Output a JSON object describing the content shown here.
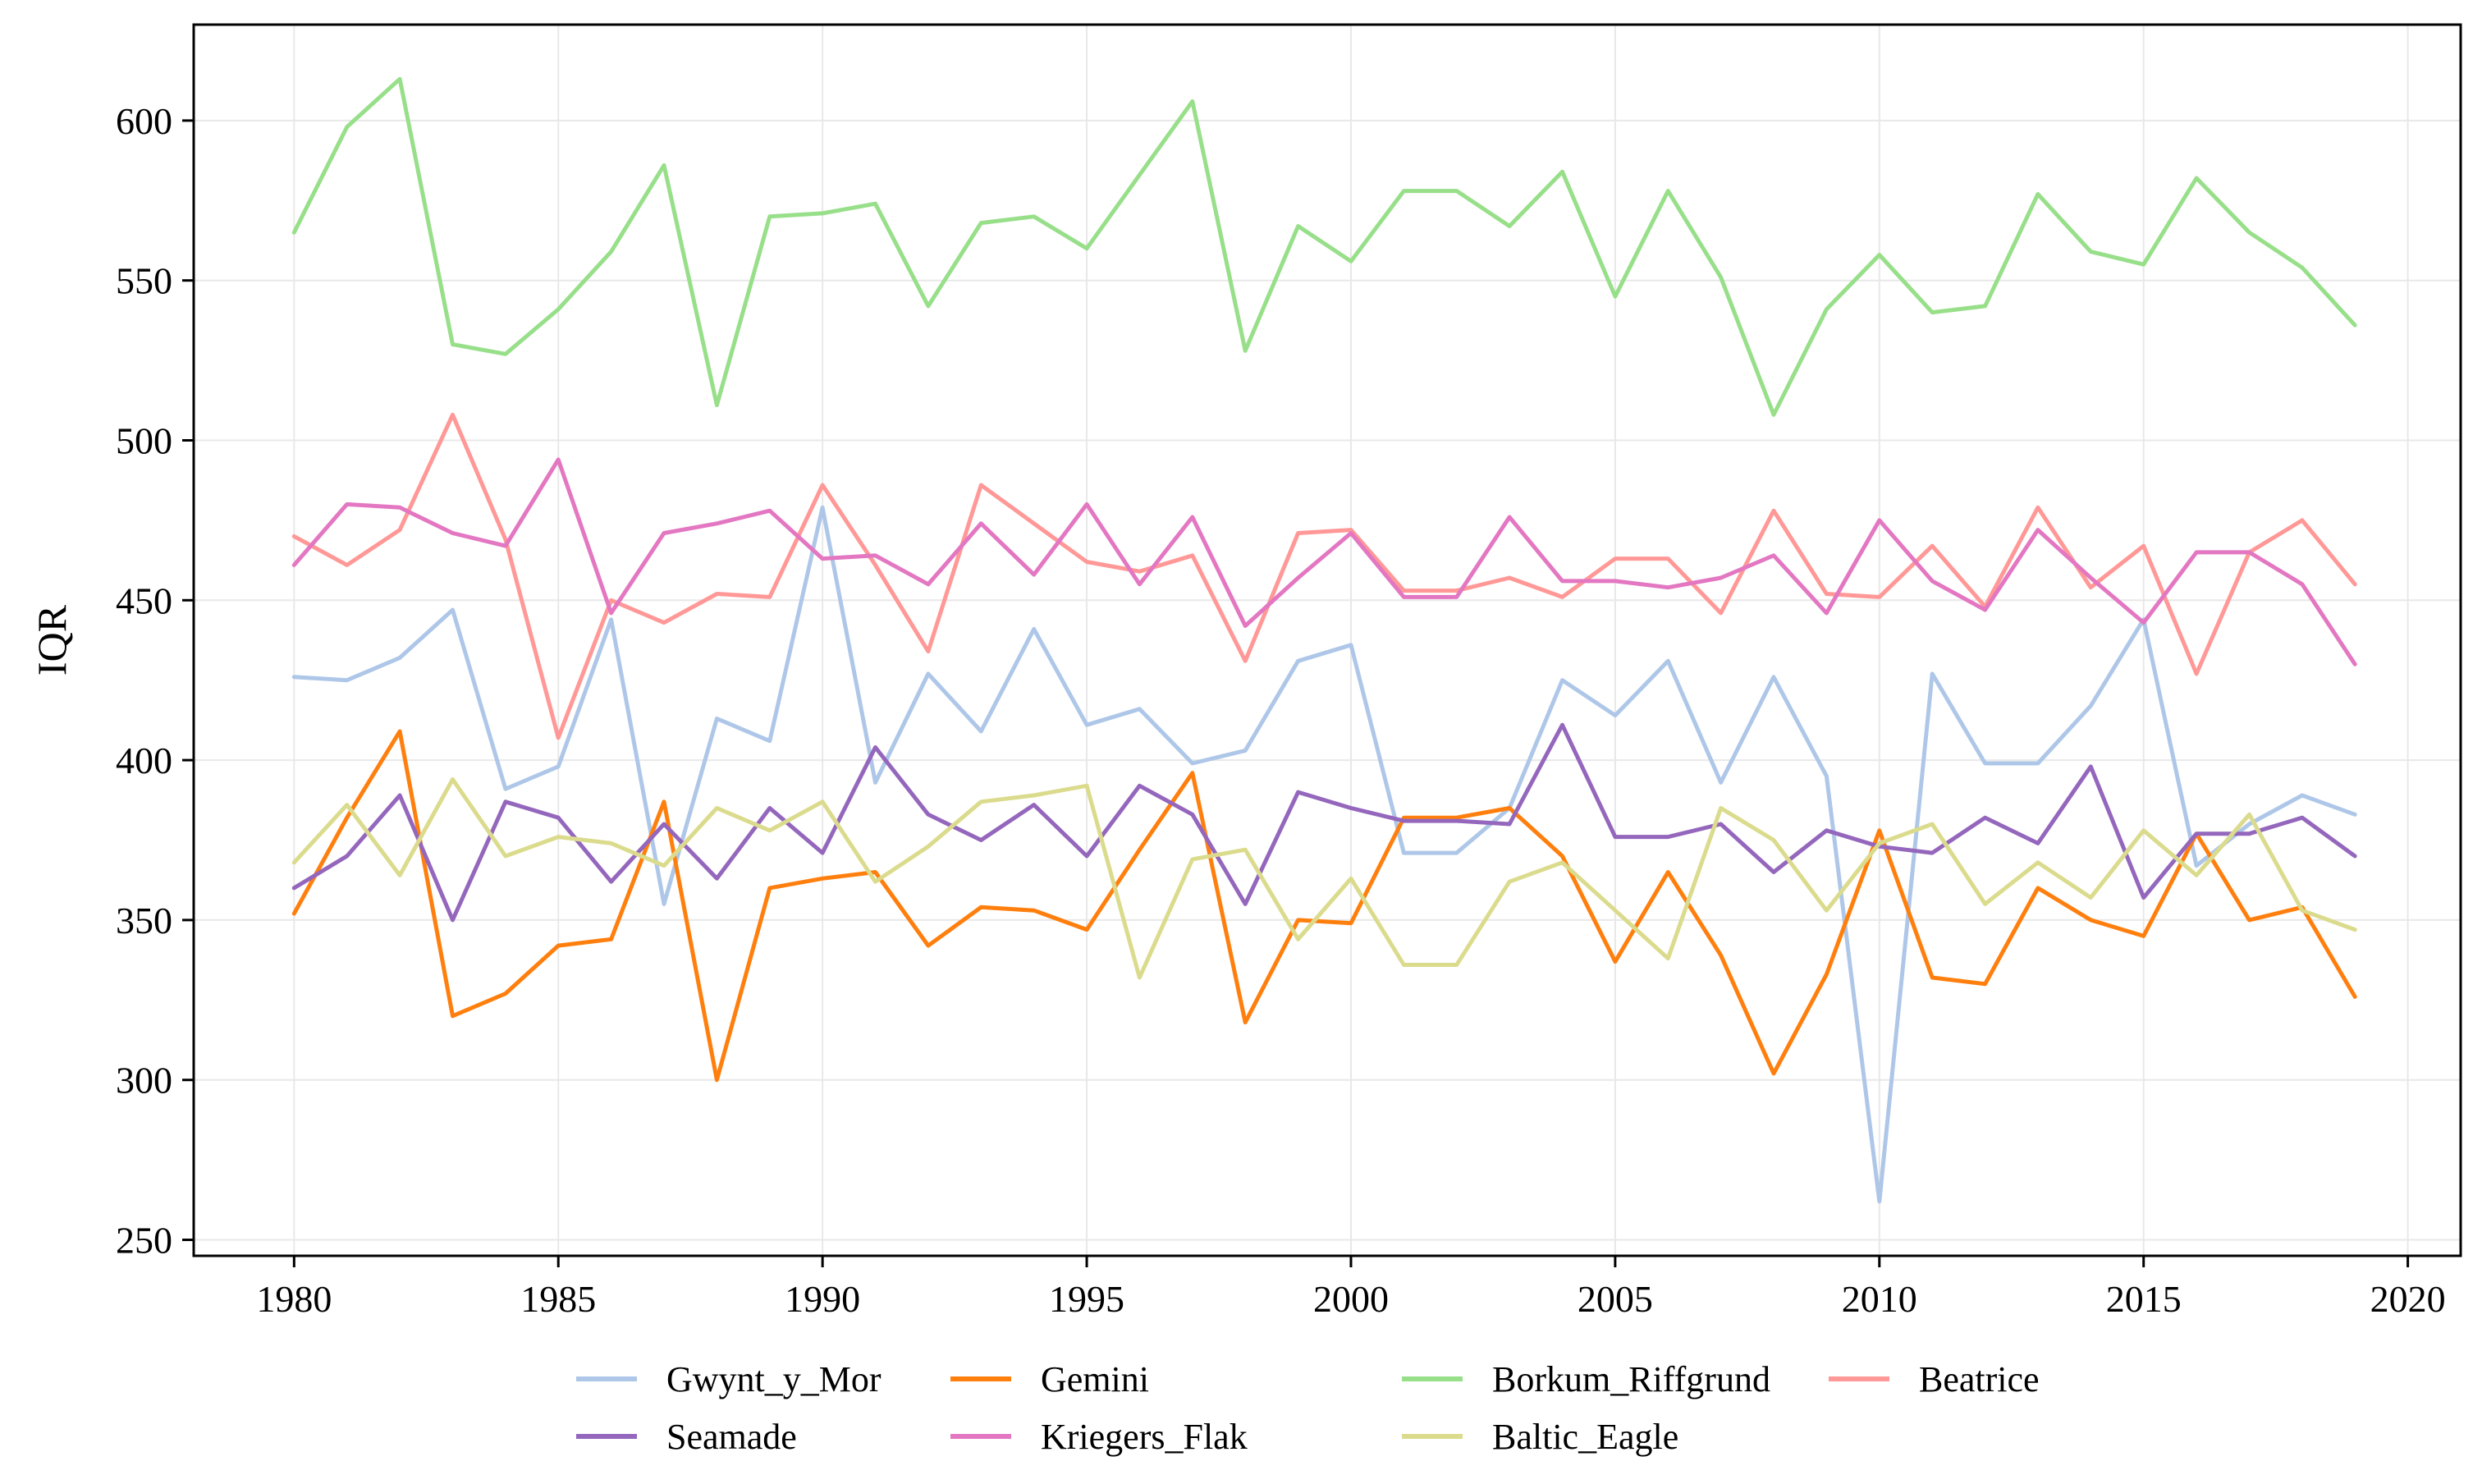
{
  "chart_data": {
    "type": "line",
    "title": "",
    "xlabel": "",
    "ylabel": "IQR",
    "xlim": [
      1978.1,
      2021.0
    ],
    "ylim": [
      245,
      630
    ],
    "x_ticks": [
      1980,
      1985,
      1990,
      1995,
      2000,
      2005,
      2010,
      2015,
      2020
    ],
    "y_ticks": [
      250,
      300,
      350,
      400,
      450,
      500,
      550,
      600
    ],
    "grid": true,
    "legend_position": "bottom",
    "x": [
      1980,
      1981,
      1982,
      1983,
      1984,
      1985,
      1986,
      1987,
      1988,
      1989,
      1990,
      1991,
      1992,
      1993,
      1994,
      1995,
      1996,
      1997,
      1998,
      1999,
      2000,
      2001,
      2002,
      2003,
      2004,
      2005,
      2006,
      2007,
      2008,
      2009,
      2010,
      2011,
      2012,
      2013,
      2014,
      2015,
      2016,
      2017,
      2018,
      2019
    ],
    "series": [
      {
        "name": "Gwynt_y_Mor",
        "color": "#aec7e8",
        "values": [
          426,
          425,
          432,
          447,
          391,
          398,
          444,
          355,
          413,
          406,
          479,
          393,
          427,
          409,
          441,
          411,
          416,
          399,
          403,
          431,
          436,
          371,
          371,
          385,
          425,
          414,
          431,
          393,
          426,
          395,
          262,
          427,
          399,
          399,
          417,
          444,
          367,
          380,
          389,
          383
        ]
      },
      {
        "name": "Gemini",
        "color": "#ff7f0e",
        "values": [
          352,
          382,
          409,
          320,
          327,
          342,
          344,
          387,
          300,
          360,
          363,
          365,
          342,
          354,
          353,
          347,
          372,
          396,
          318,
          350,
          349,
          382,
          382,
          385,
          370,
          337,
          365,
          339,
          302,
          333,
          378,
          332,
          330,
          360,
          350,
          345,
          377,
          350,
          354,
          326
        ]
      },
      {
        "name": "Borkum_Riffgrund",
        "color": "#98df8a",
        "values": [
          565,
          598,
          613,
          530,
          527,
          541,
          559,
          586,
          511,
          570,
          571,
          574,
          542,
          568,
          570,
          560,
          583,
          606,
          528,
          567,
          556,
          578,
          578,
          567,
          584,
          545,
          578,
          551,
          508,
          541,
          558,
          540,
          542,
          577,
          559,
          555,
          582,
          565,
          554,
          536
        ]
      },
      {
        "name": "Beatrice",
        "color": "#ff9896",
        "values": [
          470,
          461,
          472,
          508,
          469,
          407,
          450,
          443,
          452,
          451,
          486,
          461,
          434,
          486,
          474,
          462,
          459,
          464,
          431,
          471,
          472,
          453,
          453,
          457,
          451,
          463,
          463,
          446,
          478,
          452,
          451,
          467,
          448,
          479,
          454,
          467,
          427,
          465,
          475,
          455
        ]
      },
      {
        "name": "Seamade",
        "color": "#9467bd",
        "values": [
          360,
          370,
          389,
          350,
          387,
          382,
          362,
          380,
          363,
          385,
          371,
          404,
          383,
          375,
          386,
          370,
          392,
          383,
          355,
          390,
          385,
          381,
          381,
          380,
          411,
          376,
          376,
          380,
          365,
          378,
          373,
          371,
          382,
          374,
          398,
          357,
          377,
          377,
          382,
          370
        ]
      },
      {
        "name": "Kriegers_Flak",
        "color": "#e377c2",
        "values": [
          461,
          480,
          479,
          471,
          467,
          494,
          446,
          471,
          474,
          478,
          463,
          464,
          455,
          474,
          458,
          480,
          455,
          476,
          442,
          457,
          471,
          451,
          451,
          476,
          456,
          456,
          454,
          457,
          464,
          446,
          475,
          456,
          447,
          472,
          457,
          443,
          465,
          465,
          455,
          430
        ]
      },
      {
        "name": "Baltic_Eagle",
        "color": "#dbdb8d",
        "values": [
          368,
          386,
          364,
          394,
          370,
          376,
          374,
          367,
          385,
          378,
          387,
          362,
          373,
          387,
          389,
          392,
          332,
          369,
          372,
          344,
          363,
          336,
          336,
          362,
          368,
          353,
          338,
          385,
          375,
          353,
          374,
          380,
          355,
          368,
          357,
          378,
          364,
          383,
          353,
          347
        ]
      }
    ]
  }
}
